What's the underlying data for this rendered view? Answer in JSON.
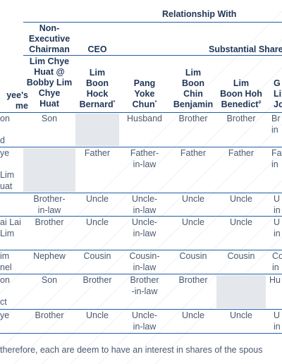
{
  "header": {
    "relationship_with": "Relationship With",
    "non_executive_chairman": "Non-\nExecutive\nChairman",
    "ceo": "CEO",
    "substantial_shareholders": "Substantial Share",
    "employee_name": "yee's\nme"
  },
  "columns": [
    {
      "name": "Lim Chye\nHuat @\nBobby Lim\nChye\nHuat",
      "sup": ""
    },
    {
      "name": "Lim\nBoon\nHock\nBernard",
      "sup": "*"
    },
    {
      "name": "Pang\nYoke\nChun",
      "sup": "*"
    },
    {
      "name": "Lim\nBoon\nChin\nBenjamin",
      "sup": ""
    },
    {
      "name": "Lim\nBoon Hoh\nBenedict",
      "sup": "#"
    },
    {
      "name": "G\nLi\nJoa",
      "sup": ""
    }
  ],
  "rows": [
    {
      "name": "on\n\nd",
      "cells": [
        "Son",
        "",
        "Husband",
        "Brother",
        "Brother",
        "Br\nin"
      ]
    },
    {
      "name": "ye\n\nLim\nuat",
      "cells": [
        "",
        "Father",
        "Father-\nin-law",
        "Father",
        "Father",
        "Fa\nin"
      ]
    },
    {
      "name": "",
      "cells": [
        "Brother-\nin-law",
        "Uncle",
        "Uncle-\nin-law",
        "Uncle",
        "Uncle",
        "U\nin"
      ]
    },
    {
      "name": "ai Lai\nLim",
      "cells": [
        "Brother",
        "Uncle",
        "Uncle-\nin-law",
        "Uncle",
        "Uncle",
        "U\nin"
      ]
    },
    {
      "name": "im\nnel",
      "cells": [
        "Nephew",
        "Cousin",
        "Cousin-\nin-law",
        "Cousin",
        "Cousin",
        "Co\nin"
      ]
    },
    {
      "name": "on\n\nct",
      "cells": [
        "Son",
        "Brother",
        "Brother\n-in-law",
        "Brother",
        "",
        "Hu"
      ]
    },
    {
      "name": "ye",
      "cells": [
        "Brother",
        "Uncle",
        "Uncle-\nin-law",
        "Uncle",
        "Uncle",
        "U\nin"
      ]
    }
  ],
  "footnote": "therefore, each are deem to have an interest in shares of the spous"
}
